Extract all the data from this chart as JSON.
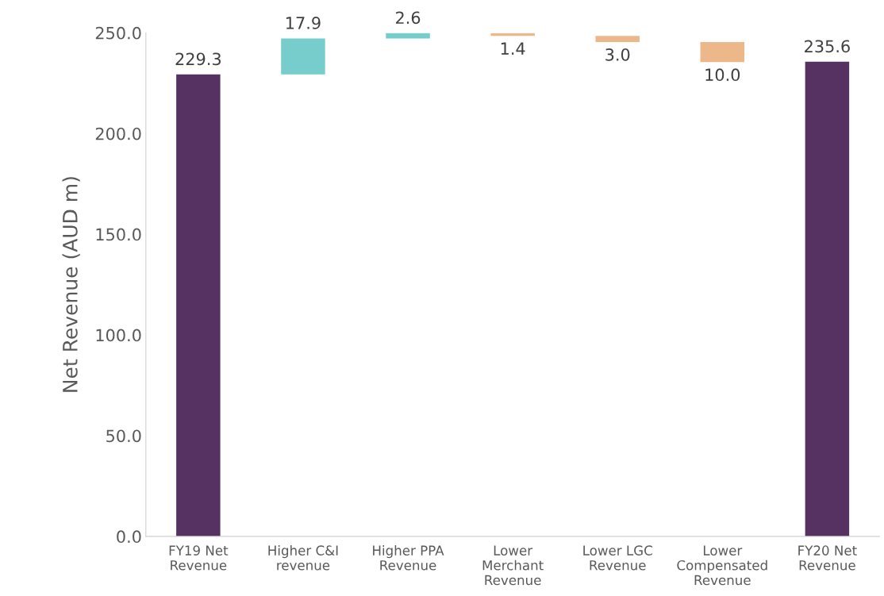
{
  "chart_data": {
    "type": "bar",
    "ylabel": "Net Revenue (AUD m)",
    "categories": [
      "FY19 Net\nRevenue",
      "Higher C&I\nrevenue",
      "Higher PPA\nRevenue",
      "Lower\nMerchant\nRevenue",
      "Lower LGC\nRevenue",
      "Lower\nCompensated\nRevenue",
      "FY20 Net\nRevenue"
    ],
    "values": [
      229.3,
      17.9,
      2.6,
      -1.4,
      -3.0,
      -10.0,
      235.6
    ],
    "base": [
      0,
      229.3,
      247.2,
      249.8,
      248.4,
      245.4,
      0
    ],
    "colors": [
      "#563262",
      "#77cccc",
      "#77cccc",
      "#ecb88a",
      "#ecb88a",
      "#ecb88a",
      "#563262"
    ],
    "value_labels": [
      "229.3",
      "17.9",
      "2.6",
      "1.4",
      "3.0",
      "10.0",
      "235.6"
    ],
    "ylim": [
      0,
      250
    ],
    "yticks": [
      {
        "value": 0,
        "label": "0.0"
      },
      {
        "value": 50,
        "label": "50.0"
      },
      {
        "value": 100,
        "label": "100.0"
      },
      {
        "value": 150,
        "label": "150.0"
      },
      {
        "value": 200,
        "label": "200.0"
      },
      {
        "value": 250,
        "label": "250.0"
      }
    ],
    "grid": false
  }
}
